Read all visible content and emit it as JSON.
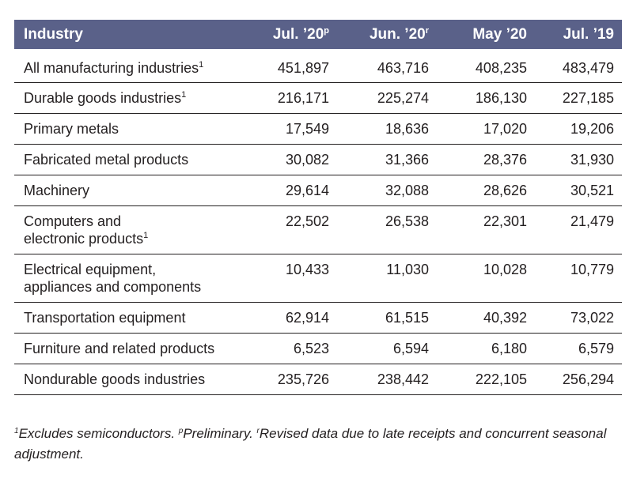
{
  "table": {
    "headers": [
      {
        "label": "Industry",
        "sup": ""
      },
      {
        "label": "Jul. ’20",
        "sup": "p"
      },
      {
        "label": "Jun. ’20",
        "sup": "r"
      },
      {
        "label": "May ’20",
        "sup": ""
      },
      {
        "label": "Jul. ’19",
        "sup": ""
      }
    ],
    "rows": [
      {
        "industry": "All manufacturing industries",
        "sup": "1",
        "values": [
          "451,897",
          "463,716",
          "408,235",
          "483,479"
        ]
      },
      {
        "industry": "Durable goods industries",
        "sup": "1",
        "values": [
          "216,171",
          "225,274",
          "186,130",
          "227,185"
        ]
      },
      {
        "industry": "Primary metals",
        "sup": "",
        "values": [
          "17,549",
          "18,636",
          "17,020",
          "19,206"
        ]
      },
      {
        "industry": "Fabricated metal products",
        "sup": "",
        "values": [
          "30,082",
          "31,366",
          "28,376",
          "31,930"
        ]
      },
      {
        "industry": "Machinery",
        "sup": "",
        "values": [
          "29,614",
          "32,088",
          "28,626",
          "30,521"
        ]
      },
      {
        "industry": "Computers and electronic products",
        "sup": "1",
        "values": [
          "22,502",
          "26,538",
          "22,301",
          "21,479"
        ]
      },
      {
        "industry": "Electrical equipment, appliances and components",
        "sup": "",
        "values": [
          "10,433",
          "11,030",
          "10,028",
          "10,779"
        ]
      },
      {
        "industry": "Transportation equipment",
        "sup": "",
        "values": [
          "62,914",
          "61,515",
          "40,392",
          "73,022"
        ]
      },
      {
        "industry": "Furniture and related products",
        "sup": "",
        "values": [
          "6,523",
          "6,594",
          "6,180",
          "6,579"
        ]
      },
      {
        "industry": "Nondurable goods industries",
        "sup": "",
        "values": [
          "235,726",
          "238,442",
          "222,105",
          "256,294"
        ]
      }
    ]
  },
  "footnote": {
    "parts": [
      {
        "sup": "1",
        "text": "Excludes semiconductors. "
      },
      {
        "sup": "p",
        "text": "Preliminary. "
      },
      {
        "sup": "r",
        "text": "Revised data due to late receipts and concurrent seasonal adjustment."
      }
    ]
  },
  "colors": {
    "header_bg": "#5a6189",
    "header_text": "#ffffff",
    "body_text": "#231f20",
    "rule": "#231f20"
  }
}
